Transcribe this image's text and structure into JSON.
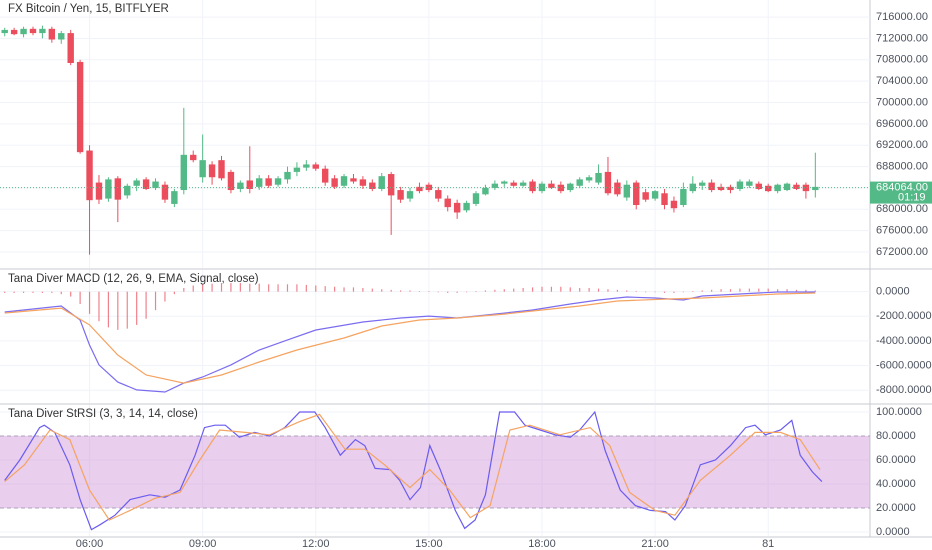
{
  "chart_data": [
    {
      "type": "candlestick",
      "title": "FX Bitcoin / Yen, 15, BITFLYER",
      "up_color": "#53b987",
      "down_color": "#eb4d5c",
      "grid": true,
      "xlim": [
        -0.5,
        91.8
      ],
      "ylim": [
        669000,
        719200
      ],
      "yticks": [
        {
          "value": 672000,
          "label": "672000.00"
        },
        {
          "value": 676000,
          "label": "676000.00"
        },
        {
          "value": 680000,
          "label": "680000.00"
        },
        {
          "value": 684000,
          "label": "684000.00"
        },
        {
          "value": 688000,
          "label": "688000.00"
        },
        {
          "value": 692000,
          "label": "692000.00"
        },
        {
          "value": 696000,
          "label": "696000.00"
        },
        {
          "value": 700000,
          "label": "700000.00"
        },
        {
          "value": 704000,
          "label": "704000.00"
        },
        {
          "value": 708000,
          "label": "708000.00"
        },
        {
          "value": 712000,
          "label": "712000.00"
        },
        {
          "value": 716000,
          "label": "716000.00"
        }
      ],
      "last_price": {
        "value": 684064,
        "label": "684064.00"
      },
      "countdown": "01:19",
      "open": [
        713000,
        713600,
        712800,
        713800,
        713000,
        713800,
        711800,
        713000,
        707600,
        691000,
        685000,
        682000,
        685800,
        682600,
        684400,
        685600,
        684000,
        684600,
        681000,
        683600,
        690200,
        686000,
        688400,
        689200,
        687000,
        683800,
        685400,
        684200,
        685800,
        684600,
        685600,
        687000,
        687800,
        688400,
        687600,
        685800,
        684400,
        685800,
        685600,
        685000,
        683800,
        686600,
        683600,
        682000,
        684200,
        684600,
        683600,
        682000,
        681200,
        679800,
        681000,
        682800,
        684000,
        684800,
        685000,
        684400,
        685200,
        683400,
        684800,
        684600,
        683600,
        684400,
        685400,
        685000,
        687000,
        685000,
        682200,
        685000,
        683200,
        682000,
        683000,
        681600,
        680800,
        683400,
        684400,
        685000,
        684200,
        684200,
        683800,
        684400,
        684800,
        684400,
        683400,
        683600,
        684600,
        684600,
        683600
      ],
      "high": [
        714000,
        714000,
        714200,
        714200,
        714400,
        714200,
        713400,
        713600,
        708000,
        692000,
        686400,
        686000,
        686200,
        684800,
        685800,
        686000,
        685800,
        685200,
        683800,
        699000,
        691000,
        694000,
        689000,
        690000,
        687400,
        685400,
        691800,
        686400,
        686400,
        686200,
        688000,
        688800,
        689200,
        688800,
        688200,
        686400,
        686600,
        686600,
        686200,
        685600,
        686800,
        687000,
        684200,
        684000,
        685000,
        685000,
        684200,
        682600,
        681800,
        681600,
        683400,
        684600,
        685400,
        685400,
        685400,
        685400,
        685600,
        685200,
        685400,
        685200,
        685000,
        686000,
        686400,
        688400,
        689800,
        685600,
        685400,
        685400,
        683800,
        683600,
        683800,
        682400,
        685000,
        686200,
        685400,
        685600,
        684800,
        684600,
        685600,
        685600,
        685200,
        684800,
        684800,
        685000,
        685000,
        685000,
        690600
      ],
      "low": [
        712400,
        712600,
        712200,
        712600,
        712000,
        711200,
        711000,
        707000,
        690400,
        671500,
        681000,
        681400,
        677600,
        682000,
        683400,
        683600,
        683600,
        681200,
        680400,
        682800,
        688800,
        685000,
        684600,
        685400,
        683000,
        683200,
        683000,
        683600,
        684000,
        684200,
        684800,
        686200,
        687200,
        687200,
        684400,
        683800,
        684000,
        684800,
        683800,
        683400,
        683400,
        675200,
        681200,
        681400,
        683000,
        683200,
        681400,
        679600,
        678200,
        679400,
        680600,
        682600,
        683600,
        684200,
        684200,
        684200,
        683000,
        683000,
        683800,
        683000,
        683200,
        684000,
        685000,
        684600,
        682600,
        682400,
        681600,
        680000,
        681400,
        681600,
        680000,
        679400,
        680400,
        683000,
        683600,
        683200,
        683400,
        683000,
        683400,
        684000,
        683600,
        683200,
        683000,
        683400,
        683600,
        682000,
        682200
      ],
      "close": [
        713600,
        712800,
        713800,
        713000,
        713800,
        711800,
        713000,
        707400,
        690700,
        681700,
        681800,
        685600,
        681800,
        684400,
        685400,
        683800,
        685200,
        681800,
        683400,
        690200,
        689200,
        689200,
        686000,
        685800,
        683600,
        685000,
        683800,
        685800,
        684400,
        685800,
        687000,
        687800,
        688400,
        687600,
        685000,
        684200,
        686200,
        685200,
        684400,
        683800,
        686200,
        682600,
        681800,
        683400,
        683400,
        683600,
        682000,
        680400,
        679400,
        681200,
        683000,
        684000,
        684800,
        685200,
        684400,
        685000,
        683400,
        684800,
        684000,
        683400,
        684800,
        685600,
        686000,
        686800,
        683000,
        682800,
        684600,
        680800,
        681800,
        683400,
        680800,
        680200,
        683800,
        684800,
        685000,
        683600,
        683600,
        683600,
        685200,
        685200,
        683800,
        683400,
        684600,
        684800,
        683800,
        683400,
        684200
      ]
    },
    {
      "type": "macd",
      "title": "Tana Diver MACD (12, 26, 9, EMA, Signal, close)",
      "grid": true,
      "xlim": [
        -0.5,
        91.8
      ],
      "ylim": [
        -9040,
        1760
      ],
      "yticks": [
        {
          "value": -8000,
          "label": "-8000.0000"
        },
        {
          "value": -6000,
          "label": "-6000.0000"
        },
        {
          "value": -4000,
          "label": "-4000.0000"
        },
        {
          "value": -2000,
          "label": "-2000.0000"
        },
        {
          "value": 0,
          "label": "0.0000"
        }
      ],
      "histogram": {
        "color": "#eb4d5c",
        "values": [
          -100,
          -100,
          -100,
          -100,
          -100,
          -100,
          -200,
          -400,
          -1000,
          -1800,
          -2400,
          -2900,
          -3100,
          -3000,
          -2700,
          -2200,
          -1500,
          -800,
          -200,
          300,
          500,
          600,
          650,
          700,
          700,
          700,
          650,
          650,
          600,
          600,
          600,
          600,
          550,
          500,
          450,
          400,
          350,
          350,
          300,
          250,
          200,
          150,
          100,
          100,
          50,
          50,
          -50,
          -100,
          -100,
          -50,
          50,
          100,
          150,
          200,
          250,
          300,
          350,
          400,
          400,
          400,
          350,
          300,
          300,
          250,
          200,
          150,
          100,
          50,
          -50,
          -50,
          -100,
          -100,
          -50,
          50,
          100,
          150,
          200,
          200,
          250,
          250,
          250,
          250,
          200,
          200,
          150,
          150,
          100
        ]
      },
      "series": [
        {
          "color": "#7b6cf0",
          "x": [
            0,
            6,
            8,
            9,
            10,
            12,
            14,
            17,
            19,
            21,
            24,
            27,
            30,
            33,
            38,
            42,
            45,
            48,
            51,
            56,
            60,
            63,
            66,
            69,
            72,
            74,
            78,
            82,
            86
          ],
          "values": [
            -1650,
            -1160,
            -2300,
            -4330,
            -5950,
            -7340,
            -7980,
            -8150,
            -7420,
            -6930,
            -5950,
            -4740,
            -3920,
            -3110,
            -2460,
            -2140,
            -1980,
            -2140,
            -1900,
            -1490,
            -1000,
            -680,
            -430,
            -510,
            -680,
            -350,
            -190,
            -30,
            -30
          ]
        },
        {
          "color": "#f5a361",
          "x": [
            0,
            6,
            9,
            12,
            15,
            19,
            23,
            27,
            31,
            36,
            40,
            44,
            48,
            53,
            57,
            61,
            65,
            70,
            74,
            78,
            82,
            86
          ],
          "values": [
            -1730,
            -1330,
            -2700,
            -5140,
            -6770,
            -7420,
            -6770,
            -5710,
            -4740,
            -3760,
            -2790,
            -2300,
            -2140,
            -1820,
            -1490,
            -1160,
            -760,
            -600,
            -510,
            -350,
            -190,
            -110
          ]
        }
      ]
    },
    {
      "type": "stoch",
      "title": "Tana Diver StRSI (3, 3, 14, 14, close)",
      "grid": true,
      "xlim": [
        -0.5,
        91.8
      ],
      "ylim": [
        -3.3,
        105.8
      ],
      "yticks": [
        {
          "value": 0,
          "label": "0.0000"
        },
        {
          "value": 20,
          "label": "20.0000"
        },
        {
          "value": 40,
          "label": "40.0000"
        },
        {
          "value": 60,
          "label": "60.0000"
        },
        {
          "value": 80,
          "label": "80.0000"
        },
        {
          "value": 100,
          "label": "100.0000"
        }
      ],
      "xticks": [
        {
          "value": 9,
          "label": "06:00"
        },
        {
          "value": 21,
          "label": "09:00"
        },
        {
          "value": 33,
          "label": "12:00"
        },
        {
          "value": 45,
          "label": "15:00"
        },
        {
          "value": 57,
          "label": "18:00"
        },
        {
          "value": 69,
          "label": "21:00"
        },
        81
      ],
      "band": [
        20,
        80
      ],
      "band_color": "#ce93d8",
      "series": [
        {
          "color": "#6a5cf0",
          "x": [
            0,
            1.6,
            3.7,
            4.2,
            5.3,
            6.9,
            8,
            9.2,
            10.1,
            11.7,
            13.3,
            15.4,
            17,
            18.6,
            20.2,
            21.2,
            22.3,
            23.4,
            24.9,
            26.5,
            28.1,
            29.7,
            31.3,
            32.9,
            34,
            35.6,
            37.2,
            38.2,
            39.3,
            40.9,
            41.9,
            43,
            44.1,
            45.1,
            46.2,
            47.8,
            48.8,
            49.9,
            51,
            52.5,
            54.1,
            55.2,
            56.8,
            58.4,
            60,
            61,
            62.6,
            63.7,
            65.3,
            66.9,
            68.5,
            70.1,
            71.1,
            72.2,
            73.8,
            75.4,
            77,
            78.6,
            79.6,
            80.7,
            82.3,
            83.5,
            84.4,
            85.7,
            86.7
          ],
          "values": [
            43,
            60,
            87,
            89,
            83,
            56,
            27,
            2,
            6,
            14,
            27,
            31,
            29,
            35,
            64,
            87,
            89,
            89,
            79,
            83,
            80,
            87,
            100,
            100,
            87,
            64,
            77,
            72,
            53,
            52,
            43,
            27,
            37,
            72,
            52,
            18,
            3,
            10,
            31,
            100,
            100,
            89,
            85,
            81,
            79,
            85,
            100,
            68,
            35,
            22,
            18,
            17,
            10,
            22,
            56,
            60,
            72,
            87,
            89,
            81,
            85,
            93,
            64,
            50,
            42
          ]
        },
        {
          "color": "#f5a361",
          "x": [
            0,
            2.1,
            4.8,
            6.9,
            9,
            11.1,
            13.3,
            15.9,
            18.6,
            20.7,
            22.8,
            25.5,
            28.1,
            31.3,
            33.4,
            36.1,
            38.2,
            40.3,
            43,
            45.1,
            47.2,
            49.4,
            51.5,
            53.6,
            55.7,
            58.9,
            62.1,
            64.2,
            66.3,
            69,
            71.1,
            73.8,
            77,
            79.6,
            82.3,
            84.4,
            86.5
          ],
          "values": [
            42,
            56,
            85,
            77,
            35,
            10,
            18,
            28,
            33,
            60,
            85,
            83,
            81,
            92,
            98,
            69,
            69,
            56,
            37,
            52,
            35,
            12,
            22,
            85,
            89,
            81,
            87,
            72,
            33,
            18,
            14,
            43,
            64,
            83,
            83,
            77,
            52
          ]
        }
      ]
    }
  ]
}
